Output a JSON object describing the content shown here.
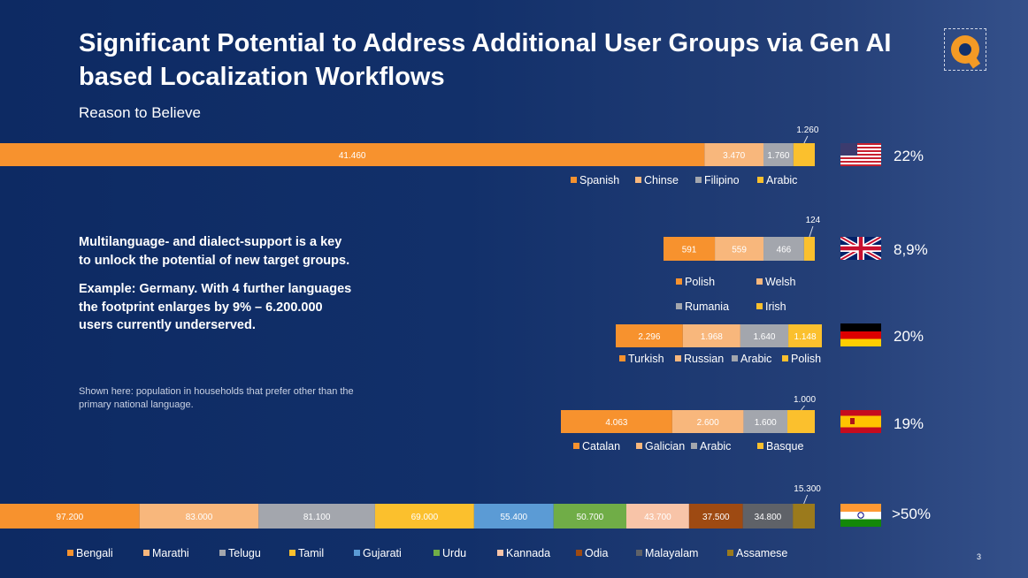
{
  "slide": {
    "title": "Significant Potential to Address Additional User Groups via Gen AI based Localization Workflows",
    "subtitle": "Reason to Believe",
    "body": [
      "Multilanguage- and dialect-support is a key to unlock the potential of new target groups.",
      "Example: Germany. With 4 further languages the footprint enlarges by 9% – 6.200.000 users currently underserved."
    ],
    "note": "Shown here: population in households that prefer other than the primary national language.",
    "page_number": "3"
  },
  "flags": {
    "usa": "us-flag-icon",
    "uk": "uk-flag-icon",
    "germany": "germany-flag-icon",
    "spain": "spain-flag-icon",
    "india": "india-flag-icon"
  },
  "chart_data": [
    {
      "type": "bar",
      "orientation": "horizontal-stacked",
      "country": "usa",
      "share": "22%",
      "series": [
        {
          "name": "Spanish",
          "value": 41460,
          "label": "41.460",
          "color": "#f7922e"
        },
        {
          "name": "Chinse",
          "value": 3470,
          "label": "3.470",
          "color": "#f8b77c"
        },
        {
          "name": "Filipino",
          "value": 1760,
          "label": "1.760",
          "color": "#a3a6ad"
        },
        {
          "name": "Arabic",
          "value": 1260,
          "label": "1.260",
          "color": "#fbc02d"
        }
      ]
    },
    {
      "type": "bar",
      "orientation": "horizontal-stacked",
      "country": "uk",
      "share": "8,9%",
      "series": [
        {
          "name": "Polish",
          "value": 591,
          "label": "591",
          "color": "#f7922e"
        },
        {
          "name": "Welsh",
          "value": 559,
          "label": "559",
          "color": "#f8b77c"
        },
        {
          "name": "Rumania",
          "value": 466,
          "label": "466",
          "color": "#a3a6ad"
        },
        {
          "name": "Irish",
          "value": 124,
          "label": "124",
          "color": "#fbc02d"
        }
      ]
    },
    {
      "type": "bar",
      "orientation": "horizontal-stacked",
      "country": "germany",
      "share": "20%",
      "series": [
        {
          "name": "Turkish",
          "value": 2296,
          "label": "2.296",
          "color": "#f7922e"
        },
        {
          "name": "Russian",
          "value": 1968,
          "label": "1.968",
          "color": "#f8b77c"
        },
        {
          "name": "Arabic",
          "value": 1640,
          "label": "1.640",
          "color": "#a3a6ad"
        },
        {
          "name": "Polish",
          "value": 1148,
          "label": "1.148",
          "color": "#fbc02d"
        }
      ]
    },
    {
      "type": "bar",
      "orientation": "horizontal-stacked",
      "country": "spain",
      "share": "19%",
      "series": [
        {
          "name": "Catalan",
          "value": 4063,
          "label": "4.063",
          "color": "#f7922e"
        },
        {
          "name": "Galician",
          "value": 2600,
          "label": "2.600",
          "color": "#f8b77c"
        },
        {
          "name": "Arabic",
          "value": 1600,
          "label": "1.600",
          "color": "#a3a6ad"
        },
        {
          "name": "Basque",
          "value": 1000,
          "label": "1.000",
          "color": "#fbc02d"
        }
      ]
    },
    {
      "type": "bar",
      "orientation": "horizontal-stacked",
      "country": "india",
      "share": ">50%",
      "series": [
        {
          "name": "Bengali",
          "value": 97200,
          "label": "97.200",
          "color": "#f7922e"
        },
        {
          "name": "Marathi",
          "value": 83000,
          "label": "83.000",
          "color": "#f8b77c"
        },
        {
          "name": "Telugu",
          "value": 81100,
          "label": "81.100",
          "color": "#a3a6ad"
        },
        {
          "name": "Tamil",
          "value": 69000,
          "label": "69.000",
          "color": "#fbc02d"
        },
        {
          "name": "Gujarati",
          "value": 55400,
          "label": "55.400",
          "color": "#5b9bd5"
        },
        {
          "name": "Urdu",
          "value": 50700,
          "label": "50.700",
          "color": "#70ad47"
        },
        {
          "name": "Kannada",
          "value": 43700,
          "label": "43.700",
          "color": "#f8c4a8"
        },
        {
          "name": "Odia",
          "value": 37500,
          "label": "37.500",
          "color": "#9e4a12"
        },
        {
          "name": "Malayalam",
          "value": 34800,
          "label": "34.800",
          "color": "#5f6268"
        },
        {
          "name": "Assamese",
          "value": 15300,
          "label": "15.300",
          "color": "#9b7a1c"
        }
      ]
    }
  ]
}
